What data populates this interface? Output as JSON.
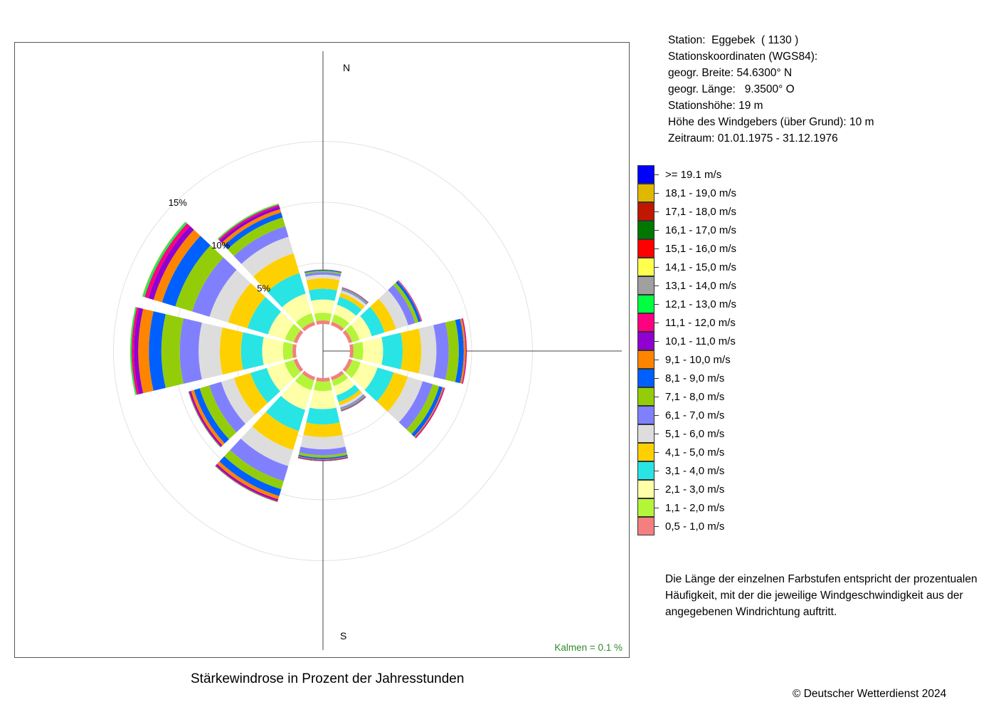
{
  "chart_data": {
    "type": "polar_stacked_bar",
    "title": "Stärkewindrose in Prozent der Jahresstunden",
    "radial_ticks": [
      {
        "value": 5,
        "label": "5%"
      },
      {
        "value": 10,
        "label": "10%"
      },
      {
        "value": 15,
        "label": "15%"
      }
    ],
    "compass_labels": {
      "north": "N",
      "south": "S"
    },
    "calm_text": "Kalmen  =  0.1 %",
    "sectors_deg": [
      0,
      30,
      60,
      90,
      120,
      150,
      180,
      210,
      240,
      270,
      300,
      330
    ],
    "speed_classes": [
      {
        "label": "0,5 - 1,0 m/s",
        "color": "#f47f7f"
      },
      {
        "label": "1,1 - 2,0 m/s",
        "color": "#b4f53a"
      },
      {
        "label": "2,1 - 3,0 m/s",
        "color": "#ffffa8"
      },
      {
        "label": "3,1 - 4,0 m/s",
        "color": "#29e4e4"
      },
      {
        "label": "4,1 - 5,0 m/s",
        "color": "#ffd000"
      },
      {
        "label": "5,1 - 6,0 m/s",
        "color": "#dddddd"
      },
      {
        "label": "6,1 - 7,0 m/s",
        "color": "#8080ff"
      },
      {
        "label": "7,1 - 8,0 m/s",
        "color": "#93cd0a"
      },
      {
        "label": "8,1 - 9,0 m/s",
        "color": "#0060ff"
      },
      {
        "label": "9,1 - 10,0 m/s",
        "color": "#ff8400"
      },
      {
        "label": "10,1 - 11,0 m/s",
        "color": "#9000d0"
      },
      {
        "label": "11,1 - 12,0 m/s",
        "color": "#ff0080"
      },
      {
        "label": "12,1 - 13,0 m/s",
        "color": "#00ff40"
      },
      {
        "label": "13,1 - 14,0 m/s",
        "color": "#a0a0a0"
      },
      {
        "label": "14,1 - 15,0 m/s",
        "color": "#ffff50"
      },
      {
        "label": "15,1 - 16,0 m/s",
        "color": "#ff0000"
      },
      {
        "label": "16,1 - 17,0 m/s",
        "color": "#007800"
      },
      {
        "label": "17,1 - 18,0 m/s",
        "color": "#c01800"
      },
      {
        "label": "18,1 - 19,0 m/s",
        "color": "#e0b800"
      },
      {
        "label": ">= 19.1 m/s",
        "color": "#0000ff"
      }
    ],
    "series": [
      {
        "direction_deg": 0,
        "values": [
          0.29,
          0.63,
          1.09,
          0.88,
          0.86,
          0.3,
          0.2,
          0.12,
          0.08,
          0.02,
          0.01,
          0.0,
          0.0,
          0.0,
          0.0,
          0.0,
          0.0,
          0.0,
          0.0,
          0.0
        ]
      },
      {
        "direction_deg": 30,
        "values": [
          0.29,
          0.63,
          0.83,
          0.68,
          0.35,
          0.21,
          0.1,
          0.06,
          0.04,
          0.03,
          0.03,
          0.01,
          0.0,
          0.0,
          0.0,
          0.0,
          0.0,
          0.0,
          0.0,
          0.0
        ]
      },
      {
        "direction_deg": 60,
        "values": [
          0.29,
          0.63,
          1.05,
          1.1,
          0.98,
          1.05,
          0.59,
          0.29,
          0.21,
          0.04,
          0.03,
          0.03,
          0.0,
          0.0,
          0.0,
          0.0,
          0.0,
          0.0,
          0.0,
          0.0
        ]
      },
      {
        "direction_deg": 90,
        "values": [
          0.29,
          0.8,
          1.63,
          1.61,
          1.53,
          1.24,
          1.01,
          0.83,
          0.41,
          0.16,
          0.05,
          0.04,
          0.0,
          0.0,
          0.0,
          0.0,
          0.0,
          0.0,
          0.0,
          0.0
        ]
      },
      {
        "direction_deg": 120,
        "values": [
          0.29,
          0.72,
          1.45,
          1.38,
          1.22,
          1.28,
          0.85,
          0.57,
          0.3,
          0.1,
          0.06,
          0.04,
          0.0,
          0.0,
          0.0,
          0.0,
          0.0,
          0.0,
          0.0,
          0.0
        ]
      },
      {
        "direction_deg": 150,
        "values": [
          0.29,
          0.5,
          0.8,
          0.56,
          0.29,
          0.2,
          0.12,
          0.07,
          0.04,
          0.03,
          0.04,
          0.02,
          0.01,
          0.0,
          0.0,
          0.0,
          0.0,
          0.0,
          0.0,
          0.0
        ]
      },
      {
        "direction_deg": 180,
        "values": [
          0.29,
          0.78,
          1.48,
          1.26,
          1.04,
          1.0,
          0.49,
          0.2,
          0.12,
          0.06,
          0.05,
          0.04,
          0.02,
          0.0,
          0.0,
          0.0,
          0.0,
          0.0,
          0.0,
          0.0
        ]
      },
      {
        "direction_deg": 210,
        "values": [
          0.29,
          0.85,
          1.69,
          1.81,
          1.63,
          1.38,
          1.29,
          0.7,
          0.58,
          0.28,
          0.13,
          0.08,
          0.04,
          0.0,
          0.0,
          0.0,
          0.0,
          0.0,
          0.0,
          0.0
        ]
      },
      {
        "direction_deg": 240,
        "values": [
          0.29,
          0.79,
          1.52,
          1.4,
          1.42,
          1.1,
          1.02,
          0.83,
          0.49,
          0.26,
          0.12,
          0.07,
          0.04,
          0.0,
          0.0,
          0.0,
          0.0,
          0.0,
          0.0,
          0.0
        ]
      },
      {
        "direction_deg": 270,
        "values": [
          0.29,
          0.79,
          1.7,
          1.74,
          1.74,
          1.74,
          1.55,
          1.51,
          1.03,
          0.87,
          0.36,
          0.18,
          0.1,
          0.03,
          0.02,
          0.0,
          0.0,
          0.0,
          0.0,
          0.0
        ]
      },
      {
        "direction_deg": 300,
        "values": [
          0.29,
          0.75,
          1.46,
          1.76,
          1.67,
          1.59,
          1.49,
          1.45,
          1.14,
          0.73,
          0.45,
          0.32,
          0.15,
          0.05,
          0.03,
          0.0,
          0.0,
          0.0,
          0.0,
          0.0
        ]
      },
      {
        "direction_deg": 330,
        "values": [
          0.29,
          0.73,
          1.68,
          1.76,
          1.7,
          1.42,
          0.9,
          0.76,
          0.43,
          0.29,
          0.23,
          0.14,
          0.08,
          0.03,
          0.02,
          0.0,
          0.0,
          0.0,
          0.0,
          0.0
        ]
      }
    ]
  },
  "station_info": [
    "Station:  Eggebek  ( 1130 )",
    "Stationskoordinaten (WGS84):",
    "geogr. Breite: 54.6300° N",
    "geogr. Länge:   9.3500° O",
    "Stationshöhe: 19 m",
    "Höhe des Windgebers (über Grund): 10 m",
    "Zeitraum: 01.01.1975 - 31.12.1976"
  ],
  "description": [
    "Die Länge der einzelnen Farbstufen entspricht der prozentualen",
    "Häufigkeit, mit der die jeweilige Windgeschwindigkeit aus der",
    "angegebenen Windrichtung auftritt."
  ],
  "copyright": "© Deutscher Wetterdienst  2024"
}
